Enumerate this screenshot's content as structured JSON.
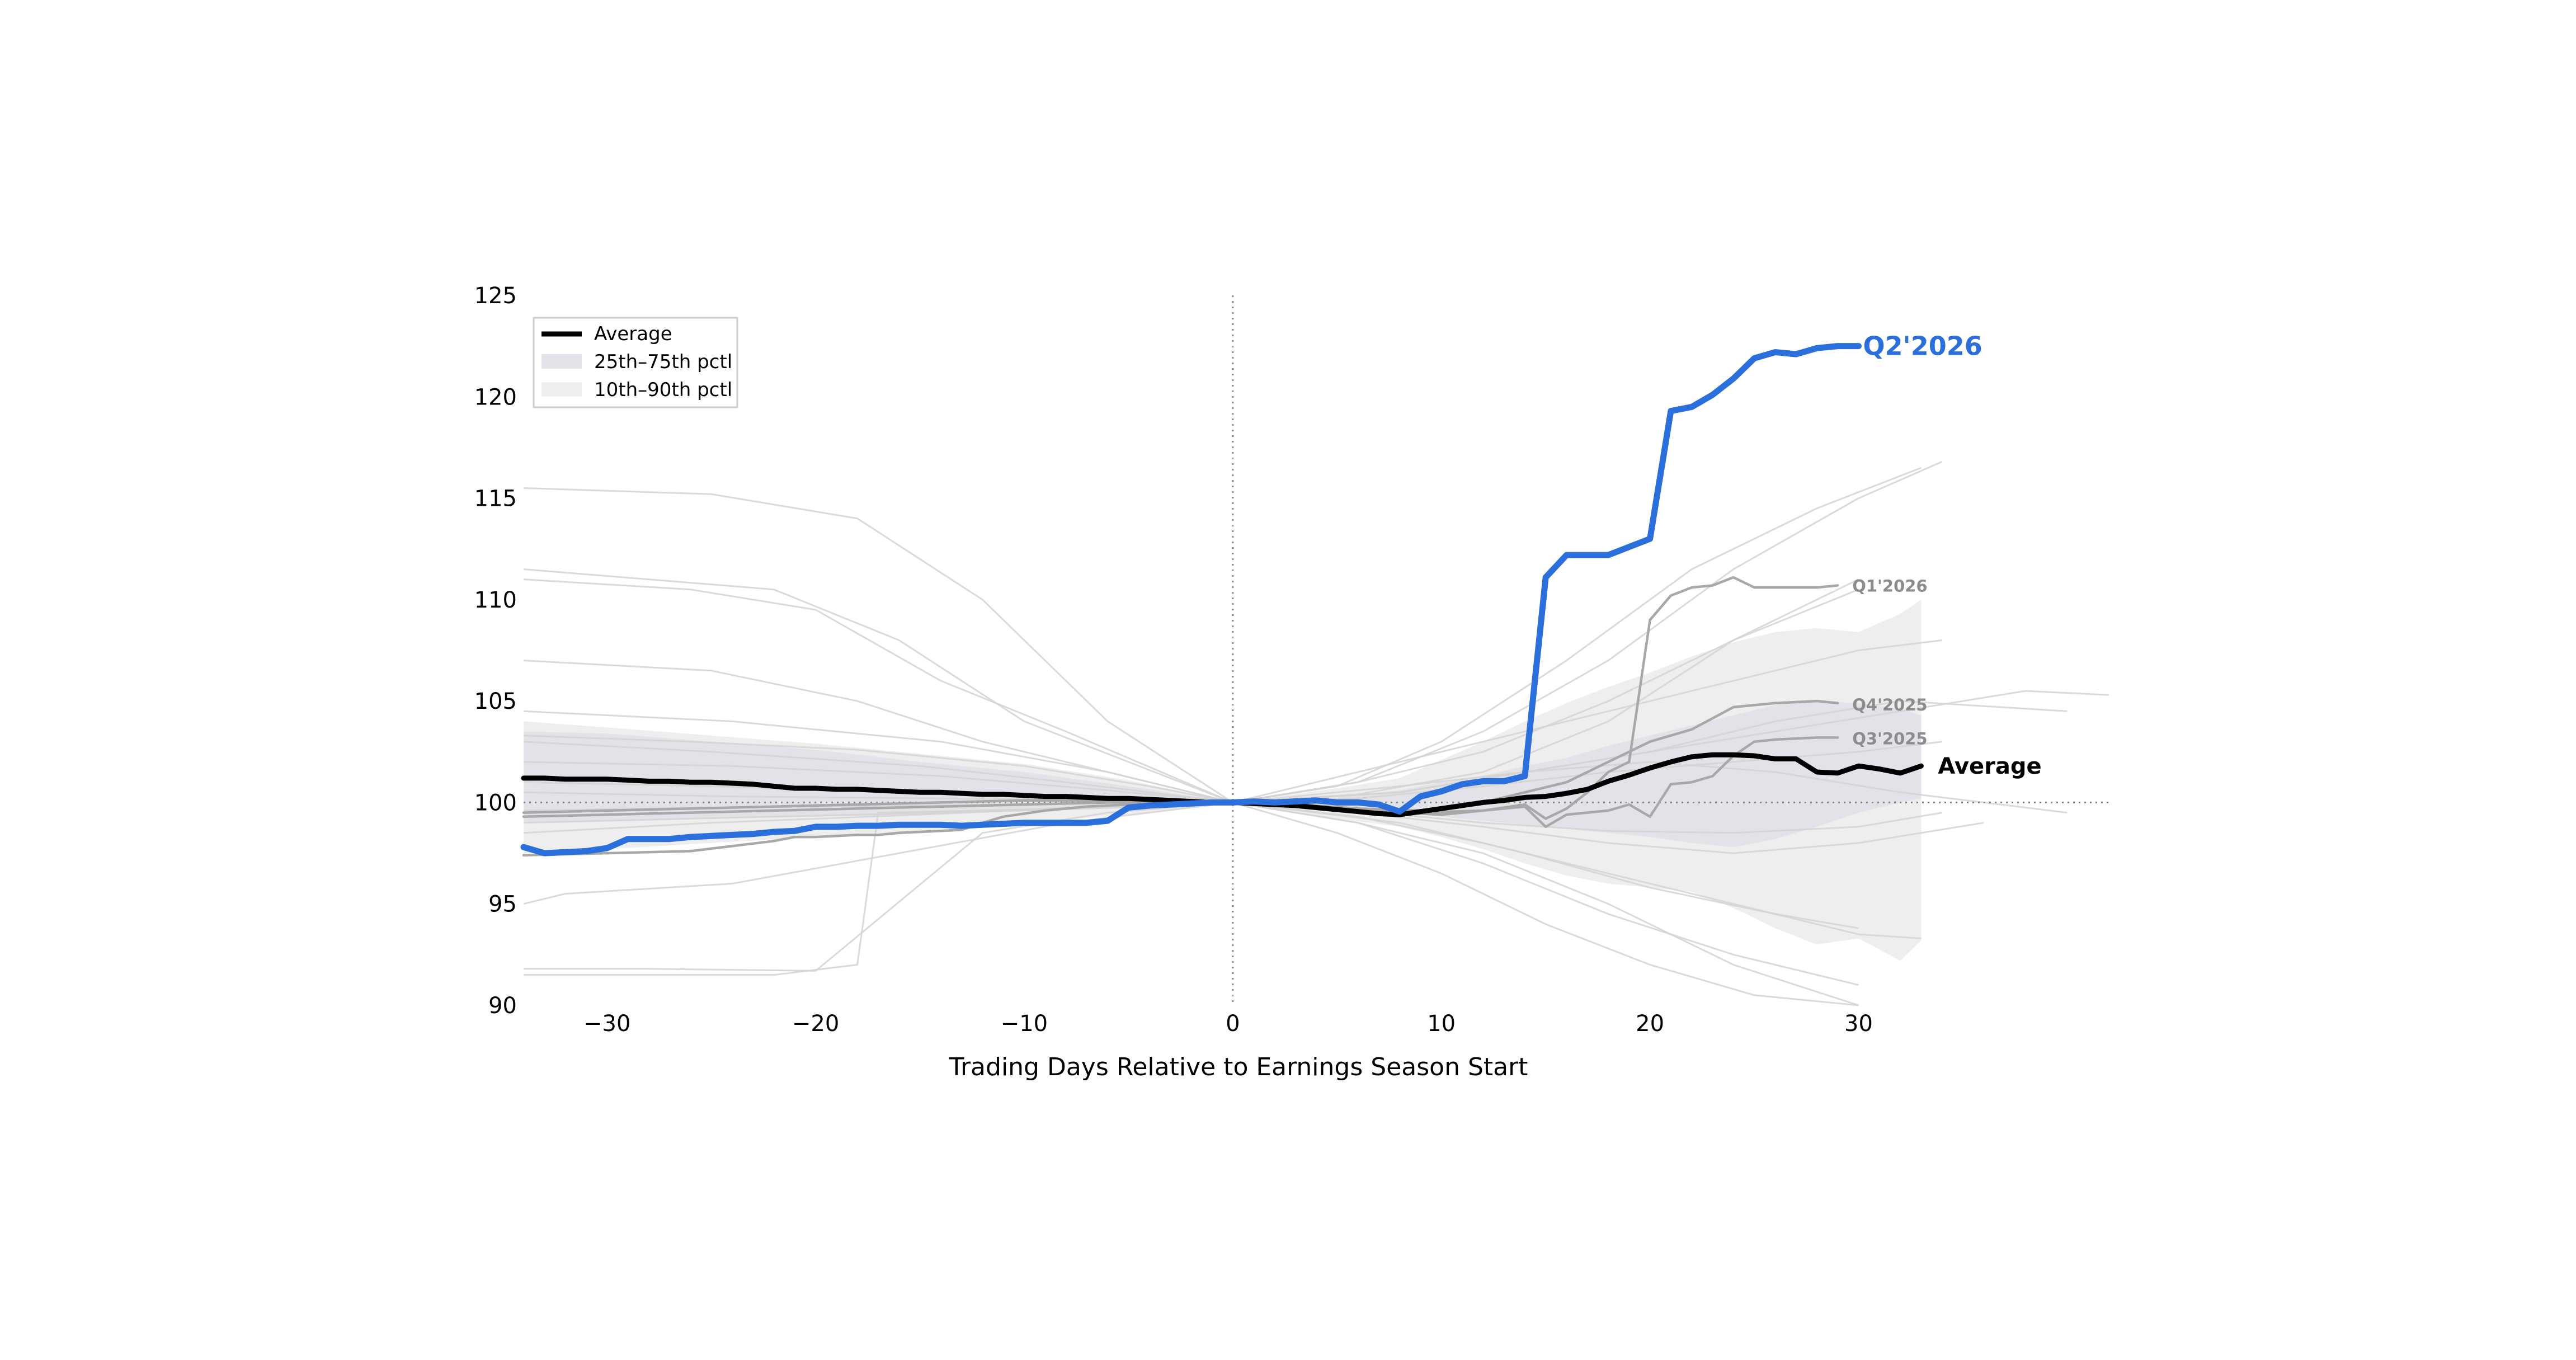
{
  "chart_data": {
    "type": "line",
    "title": "",
    "xlabel": "Trading Days Relative to Earnings Season Start",
    "ylabel": "",
    "xlim": [
      -34,
      42
    ],
    "ylim": [
      90,
      125
    ],
    "xticks": [
      -30,
      -20,
      -10,
      0,
      10,
      20,
      30
    ],
    "xtick_labels": [
      "−30",
      "−20",
      "−10",
      "0",
      "10",
      "20",
      "30"
    ],
    "yticks": [
      90,
      95,
      100,
      105,
      110,
      115,
      120,
      125
    ],
    "ytick_labels": [
      "90",
      "95",
      "100",
      "105",
      "110",
      "115",
      "120",
      "125"
    ],
    "reference_lines": {
      "vertical_x": 0,
      "horizontal_y": 100,
      "style": "dotted"
    },
    "grid": false,
    "legend": {
      "position": "top-left",
      "entries": [
        {
          "label": "Average",
          "style": "line",
          "color": "#000000"
        },
        {
          "label": "25th–75th pctl",
          "style": "patch",
          "color": "#e2e2e8"
        },
        {
          "label": "10th–90th pctl",
          "style": "patch",
          "color": "#eeeeef"
        }
      ]
    },
    "bands": {
      "x": [
        -34,
        -30,
        -25,
        -20,
        -15,
        -10,
        -5,
        0,
        5,
        8,
        10,
        12,
        14,
        16,
        18,
        20,
        22,
        24,
        26,
        28,
        30,
        32,
        33
      ],
      "p10": [
        97.5,
        97.7,
        98.0,
        98.3,
        98.6,
        99.0,
        99.4,
        100.0,
        99.2,
        98.8,
        98.3,
        97.7,
        97.0,
        96.4,
        96.0,
        95.8,
        95.6,
        94.8,
        93.8,
        93.0,
        93.3,
        92.2,
        93.2
      ],
      "p25": [
        99.0,
        99.1,
        99.2,
        99.3,
        99.4,
        99.6,
        99.8,
        100.0,
        99.7,
        99.5,
        99.3,
        99.1,
        98.9,
        98.7,
        98.5,
        98.3,
        98.0,
        97.8,
        98.2,
        98.8,
        99.5,
        100.0,
        100.2
      ],
      "p75": [
        103.5,
        103.4,
        103.0,
        102.6,
        102.0,
        101.5,
        100.8,
        100.0,
        100.3,
        100.6,
        101.0,
        101.3,
        101.8,
        102.2,
        102.8,
        103.3,
        103.8,
        104.3,
        104.8,
        105.0,
        104.9,
        104.6,
        104.3
      ],
      "p90": [
        104.0,
        103.7,
        103.3,
        102.9,
        102.4,
        101.9,
        101.1,
        100.0,
        100.7,
        101.2,
        102.1,
        103.0,
        104.0,
        104.9,
        105.7,
        106.4,
        107.2,
        107.9,
        108.4,
        108.6,
        108.4,
        109.3,
        110.0
      ]
    },
    "background_series": [
      {
        "x": [
          -34,
          -25,
          -18,
          -12,
          -6,
          0,
          6,
          12,
          18,
          24,
          30
        ],
        "y": [
          115.5,
          115.2,
          114.0,
          110.0,
          104.0,
          100.0,
          100.4,
          101.5,
          104.0,
          108.0,
          111.0
        ]
      },
      {
        "x": [
          -34,
          -28,
          -22,
          -16,
          -10,
          -5,
          0,
          6,
          12,
          18,
          24,
          30,
          34
        ],
        "y": [
          111.5,
          111.0,
          110.5,
          108.0,
          104.0,
          102.0,
          100.0,
          101.0,
          103.5,
          107.0,
          111.5,
          115.0,
          116.8
        ]
      },
      {
        "x": [
          -34,
          -26,
          -20,
          -14,
          -8,
          0,
          5,
          10,
          16,
          22,
          28,
          33
        ],
        "y": [
          111.0,
          110.5,
          109.5,
          106.0,
          103.5,
          100.0,
          100.8,
          103.0,
          107.0,
          111.5,
          114.5,
          116.5
        ]
      },
      {
        "x": [
          -34,
          -25,
          -18,
          -12,
          -6,
          0,
          6,
          12,
          18,
          24,
          30
        ],
        "y": [
          107.0,
          106.5,
          105.0,
          103.0,
          101.5,
          100.0,
          101.0,
          102.5,
          105.0,
          108.0,
          110.5
        ]
      },
      {
        "x": [
          -34,
          -22,
          -18,
          -17,
          -12,
          -6,
          0,
          6,
          12,
          18,
          24,
          30
        ],
        "y": [
          91.5,
          91.5,
          92.0,
          99.5,
          99.6,
          99.8,
          100.0,
          99.0,
          97.5,
          95.0,
          92.0,
          89.5
        ]
      },
      {
        "x": [
          -34,
          -28,
          -20,
          -12,
          -6,
          0,
          5,
          10,
          15,
          20,
          25,
          30
        ],
        "y": [
          91.8,
          91.8,
          91.7,
          98.5,
          99.5,
          100.0,
          98.5,
          96.5,
          94.0,
          92.0,
          90.5,
          89.6
        ]
      },
      {
        "x": [
          -34,
          -32,
          -24,
          -16,
          -8,
          0,
          6,
          12,
          18,
          24,
          30,
          33
        ],
        "y": [
          95.0,
          95.5,
          96.0,
          97.5,
          99.0,
          100.0,
          99.3,
          98.0,
          96.5,
          95.0,
          93.5,
          93.3
        ]
      },
      {
        "x": [
          -34,
          -26,
          -18,
          -10,
          -4,
          0,
          6,
          12,
          18,
          24,
          30
        ],
        "y": [
          99.0,
          99.2,
          99.4,
          99.6,
          99.8,
          100.0,
          99.0,
          97.0,
          94.5,
          92.5,
          91.0
        ]
      },
      {
        "x": [
          -34,
          -25,
          -15,
          -8,
          0,
          8,
          14,
          20,
          26,
          32,
          40
        ],
        "y": [
          101.0,
          100.8,
          100.5,
          100.3,
          100.0,
          100.5,
          101.5,
          102.5,
          104.0,
          105.0,
          104.5
        ]
      },
      {
        "x": [
          -34,
          -25,
          -15,
          -8,
          0,
          8,
          14,
          20,
          26,
          32,
          38,
          42
        ],
        "y": [
          103.0,
          102.5,
          101.8,
          101.0,
          100.0,
          100.5,
          101.5,
          102.5,
          103.5,
          104.5,
          105.5,
          105.3
        ]
      },
      {
        "x": [
          -34,
          -24,
          -14,
          -6,
          0,
          8,
          14,
          20,
          26,
          32,
          40
        ],
        "y": [
          100.5,
          100.3,
          100.2,
          100.1,
          100.0,
          100.8,
          101.5,
          102.0,
          101.5,
          100.5,
          99.5
        ]
      },
      {
        "x": [
          -34,
          -25,
          -15,
          -6,
          0,
          6,
          12,
          18,
          24,
          30,
          36
        ],
        "y": [
          98.5,
          99.0,
          99.4,
          99.8,
          100.0,
          99.5,
          98.8,
          98.0,
          97.5,
          98.0,
          99.0
        ]
      },
      {
        "x": [
          -34,
          -24,
          -14,
          -6,
          0,
          6,
          12,
          18,
          24,
          30,
          34
        ],
        "y": [
          104.5,
          104.0,
          103.0,
          101.5,
          100.0,
          101.5,
          103.0,
          104.5,
          106.0,
          107.5,
          108.0
        ]
      },
      {
        "x": [
          -34,
          -24,
          -14,
          -6,
          0,
          6,
          12,
          18,
          24,
          30,
          34
        ],
        "y": [
          102.0,
          101.8,
          101.3,
          100.6,
          100.0,
          99.6,
          99.0,
          98.6,
          98.5,
          98.8,
          99.5
        ]
      },
      {
        "x": [
          -34,
          -28,
          -20,
          -10,
          -4,
          0,
          8,
          14,
          20,
          26,
          30
        ],
        "y": [
          99.6,
          99.7,
          99.8,
          99.9,
          100.0,
          100.0,
          99.0,
          97.5,
          95.8,
          94.5,
          93.8
        ]
      },
      {
        "x": [
          -34,
          -26,
          -18,
          -10,
          -4,
          0,
          6,
          12,
          18,
          24,
          30,
          34
        ],
        "y": [
          103.3,
          103.0,
          102.6,
          101.8,
          100.8,
          100.0,
          100.2,
          100.8,
          101.5,
          102.0,
          102.5,
          103.0
        ]
      }
    ],
    "series": [
      {
        "name": "Average",
        "label": "Average",
        "color": "#000000",
        "x": [
          -34,
          -33,
          -32,
          -31,
          -30,
          -29,
          -28,
          -27,
          -26,
          -25,
          -24,
          -23,
          -22,
          -21,
          -20,
          -19,
          -18,
          -17,
          -16,
          -15,
          -14,
          -13,
          -12,
          -11,
          -10,
          -9,
          -8,
          -7,
          -6,
          -5,
          -4,
          -3,
          -2,
          -1,
          0,
          1,
          2,
          3,
          4,
          5,
          6,
          7,
          8,
          9,
          10,
          11,
          12,
          13,
          14,
          15,
          16,
          17,
          18,
          19,
          20,
          21,
          22,
          23,
          24,
          25,
          26,
          27,
          28,
          29,
          30,
          31,
          32,
          33
        ],
        "y": [
          101.2,
          101.2,
          101.15,
          101.15,
          101.15,
          101.1,
          101.05,
          101.05,
          101.0,
          101.0,
          100.95,
          100.9,
          100.8,
          100.7,
          100.7,
          100.65,
          100.65,
          100.6,
          100.55,
          100.5,
          100.5,
          100.45,
          100.4,
          100.4,
          100.35,
          100.3,
          100.3,
          100.25,
          100.2,
          100.2,
          100.15,
          100.1,
          100.05,
          100.0,
          100.0,
          99.95,
          99.9,
          99.85,
          99.75,
          99.65,
          99.55,
          99.45,
          99.4,
          99.55,
          99.7,
          99.85,
          100.0,
          100.1,
          100.25,
          100.3,
          100.45,
          100.65,
          101.05,
          101.35,
          101.7,
          102.0,
          102.25,
          102.35,
          102.35,
          102.3,
          102.15,
          102.15,
          101.5,
          101.45,
          101.8,
          101.65,
          101.45,
          101.8
        ]
      },
      {
        "name": "Q2'2026",
        "label": "Q2'2026",
        "color": "#2a6fdb",
        "x": [
          -34,
          -33,
          -32,
          -31,
          -30,
          -29,
          -28,
          -27,
          -26,
          -25,
          -24,
          -23,
          -22,
          -21,
          -20,
          -19,
          -18,
          -17,
          -16,
          -15,
          -14,
          -13,
          -12,
          -11,
          -10,
          -9,
          -8,
          -7,
          -6,
          -5,
          -4,
          -3,
          -2,
          -1,
          0,
          1,
          2,
          3,
          4,
          5,
          6,
          7,
          8,
          9,
          10,
          11,
          12,
          13,
          14,
          15,
          16,
          17,
          18,
          19,
          20,
          21,
          22,
          23,
          24,
          25,
          26,
          27,
          28,
          29,
          30
        ],
        "y": [
          97.8,
          97.5,
          97.55,
          97.6,
          97.75,
          98.2,
          98.2,
          98.2,
          98.3,
          98.35,
          98.4,
          98.45,
          98.55,
          98.6,
          98.8,
          98.8,
          98.85,
          98.85,
          98.9,
          98.9,
          98.9,
          98.85,
          98.9,
          98.95,
          99.0,
          99.0,
          99.0,
          99.0,
          99.1,
          99.75,
          99.85,
          99.9,
          99.95,
          100.0,
          100.0,
          100.05,
          100.0,
          100.05,
          100.1,
          100.0,
          100.0,
          99.9,
          99.55,
          100.3,
          100.55,
          100.9,
          101.05,
          101.05,
          101.3,
          111.1,
          112.2,
          112.2,
          112.2,
          112.6,
          113.0,
          119.3,
          119.5,
          120.1,
          120.9,
          121.9,
          122.2,
          122.1,
          122.4,
          122.5,
          122.5
        ]
      },
      {
        "name": "Q1'2026",
        "label": "Q1'2026",
        "color": "#a8a8a8",
        "x": [
          -34,
          -26,
          -22,
          -21,
          -20,
          -19,
          -18,
          -17,
          -16,
          -15,
          -14,
          -13,
          -12,
          -11,
          -10,
          -9,
          -8,
          -7,
          -6,
          -5,
          -4,
          -3,
          -2,
          -1,
          0,
          2,
          4,
          6,
          8,
          10,
          12,
          14,
          15,
          16,
          17,
          18,
          19,
          20,
          21,
          22,
          23,
          24,
          25,
          26,
          27,
          28,
          29
        ],
        "y": [
          97.4,
          97.6,
          98.1,
          98.3,
          98.3,
          98.35,
          98.4,
          98.4,
          98.5,
          98.55,
          98.6,
          98.65,
          99.0,
          99.3,
          99.45,
          99.6,
          99.7,
          99.8,
          99.85,
          99.9,
          99.9,
          99.95,
          100.0,
          100.0,
          100.0,
          99.95,
          99.8,
          99.6,
          99.5,
          99.4,
          99.6,
          99.9,
          99.2,
          99.7,
          100.5,
          101.5,
          102.0,
          109.0,
          110.2,
          110.6,
          110.7,
          111.1,
          110.6,
          110.6,
          110.6,
          110.6,
          110.7
        ]
      },
      {
        "name": "Q4'2025",
        "label": "Q4'2025",
        "color": "#a8a8a8",
        "x": [
          -34,
          -30,
          -26,
          -22,
          -18,
          -14,
          -10,
          -6,
          -3,
          0,
          3,
          6,
          9,
          12,
          14,
          16,
          18,
          20,
          22,
          24,
          26,
          28,
          29
        ],
        "y": [
          99.5,
          99.6,
          99.7,
          99.8,
          99.9,
          100.0,
          100.1,
          100.1,
          100.0,
          100.0,
          99.9,
          99.7,
          99.6,
          100.0,
          100.5,
          101.0,
          102.0,
          103.0,
          103.6,
          104.7,
          104.9,
          105.0,
          104.9
        ]
      },
      {
        "name": "Q3'2025",
        "label": "Q3'2025",
        "color": "#a8a8a8",
        "x": [
          -34,
          -30,
          -26,
          -22,
          -18,
          -14,
          -10,
          -6,
          -3,
          0,
          3,
          6,
          9,
          12,
          14,
          15,
          16,
          18,
          19,
          20,
          21,
          22,
          23,
          24,
          25,
          26,
          28,
          29
        ],
        "y": [
          99.3,
          99.4,
          99.5,
          99.6,
          99.7,
          99.8,
          99.9,
          100.0,
          100.0,
          100.0,
          99.9,
          99.7,
          99.5,
          99.6,
          99.8,
          98.8,
          99.4,
          99.6,
          99.9,
          99.3,
          100.9,
          101.0,
          101.3,
          102.3,
          103.0,
          103.1,
          103.2,
          103.2
        ]
      }
    ]
  }
}
